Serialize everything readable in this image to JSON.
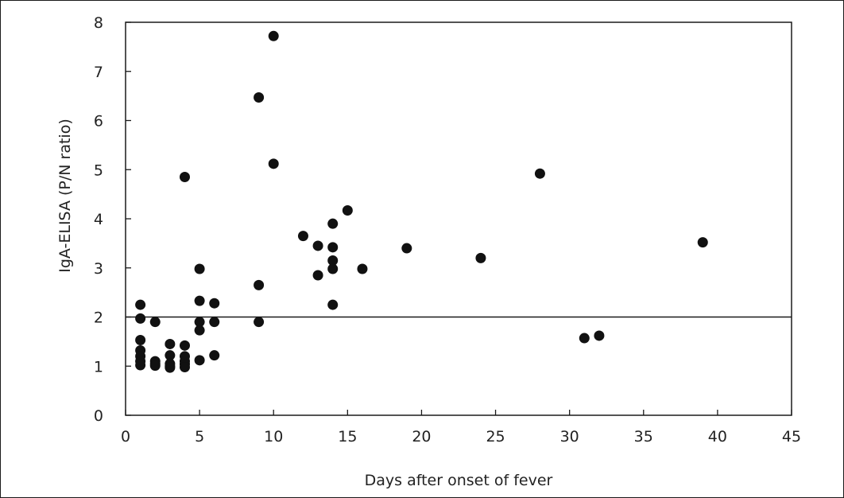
{
  "chart_data": {
    "type": "scatter",
    "title": "",
    "xlabel": "Days after onset of fever",
    "ylabel": "IgA-ELISA (P/N ratio)",
    "xlim": [
      0,
      45
    ],
    "ylim": [
      0,
      8
    ],
    "x_ticks": [
      "0",
      "5",
      "10",
      "15",
      "20",
      "25",
      "30",
      "35",
      "40",
      "45"
    ],
    "y_ticks": [
      "0",
      "1",
      "2",
      "3",
      "4",
      "5",
      "6",
      "7",
      "8"
    ],
    "cutoff_line_y": 2,
    "grid": false,
    "marker_color": "#111111",
    "points": [
      {
        "x": 1,
        "y": 2.25
      },
      {
        "x": 1,
        "y": 1.97
      },
      {
        "x": 1,
        "y": 1.53
      },
      {
        "x": 1,
        "y": 1.32
      },
      {
        "x": 1,
        "y": 1.2
      },
      {
        "x": 1,
        "y": 1.1
      },
      {
        "x": 1,
        "y": 1.02
      },
      {
        "x": 2,
        "y": 1.9
      },
      {
        "x": 2,
        "y": 1.1
      },
      {
        "x": 2,
        "y": 1.05
      },
      {
        "x": 2,
        "y": 1.01
      },
      {
        "x": 3,
        "y": 1.45
      },
      {
        "x": 3,
        "y": 1.22
      },
      {
        "x": 3,
        "y": 1.05
      },
      {
        "x": 3,
        "y": 1.0
      },
      {
        "x": 3,
        "y": 0.97
      },
      {
        "x": 4,
        "y": 4.85
      },
      {
        "x": 4,
        "y": 1.42
      },
      {
        "x": 4,
        "y": 1.2
      },
      {
        "x": 4,
        "y": 1.1
      },
      {
        "x": 4,
        "y": 1.04
      },
      {
        "x": 4,
        "y": 0.98
      },
      {
        "x": 5,
        "y": 2.98
      },
      {
        "x": 5,
        "y": 2.33
      },
      {
        "x": 5,
        "y": 1.9
      },
      {
        "x": 5,
        "y": 1.73
      },
      {
        "x": 5,
        "y": 1.12
      },
      {
        "x": 6,
        "y": 2.28
      },
      {
        "x": 6,
        "y": 1.9
      },
      {
        "x": 6,
        "y": 1.22
      },
      {
        "x": 9,
        "y": 6.47
      },
      {
        "x": 9,
        "y": 2.65
      },
      {
        "x": 9,
        "y": 1.9
      },
      {
        "x": 10,
        "y": 7.72
      },
      {
        "x": 10,
        "y": 5.12
      },
      {
        "x": 12,
        "y": 3.65
      },
      {
        "x": 13,
        "y": 3.45
      },
      {
        "x": 13,
        "y": 2.85
      },
      {
        "x": 14,
        "y": 3.9
      },
      {
        "x": 14,
        "y": 3.42
      },
      {
        "x": 14,
        "y": 3.15
      },
      {
        "x": 14,
        "y": 2.98
      },
      {
        "x": 14,
        "y": 2.25
      },
      {
        "x": 15,
        "y": 4.17
      },
      {
        "x": 16,
        "y": 2.98
      },
      {
        "x": 19,
        "y": 3.4
      },
      {
        "x": 24,
        "y": 3.2
      },
      {
        "x": 28,
        "y": 4.92
      },
      {
        "x": 31,
        "y": 1.57
      },
      {
        "x": 32,
        "y": 1.62
      },
      {
        "x": 39,
        "y": 3.52
      }
    ]
  }
}
